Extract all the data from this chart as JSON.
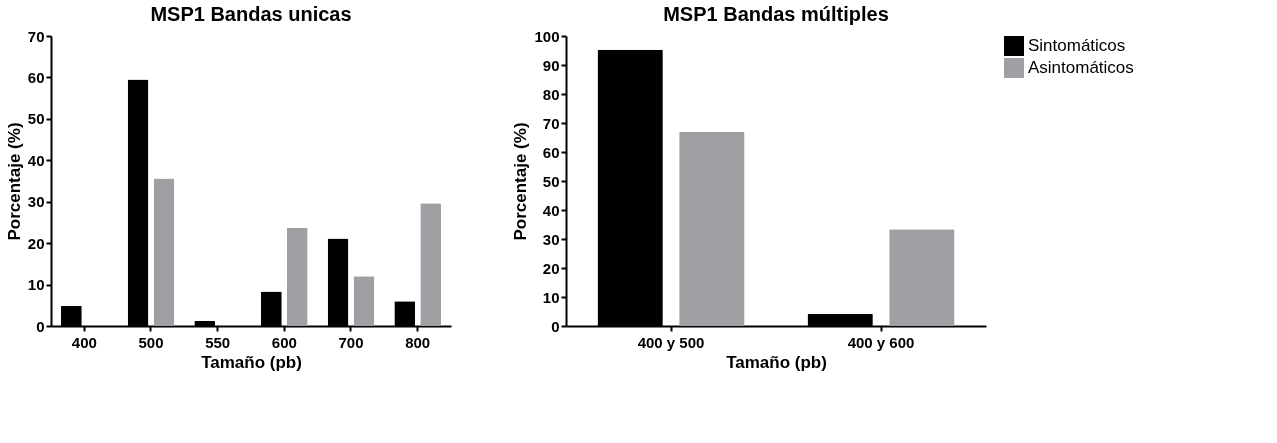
{
  "chart_data": [
    {
      "type": "bar",
      "title": "MSP1 Bandas unicas",
      "xlabel": "Tamaño (pb)",
      "ylabel": "Porcentaje (%)",
      "categories": [
        "400",
        "500",
        "550",
        "600",
        "700",
        "800"
      ],
      "series": [
        {
          "color": "#000000",
          "values": [
            4.8,
            59.5,
            1.2,
            8.3,
            21.1,
            6.0
          ]
        },
        {
          "color": "#a0a0a4",
          "values": [
            null,
            35.6,
            null,
            23.7,
            12.0,
            29.6
          ]
        }
      ],
      "ylim": [
        0,
        70
      ],
      "yticks": [
        0,
        10,
        20,
        30,
        40,
        50,
        60,
        70
      ],
      "grid": false,
      "legend": false
    },
    {
      "type": "bar",
      "title": "MSP1 Bandas múltiples",
      "xlabel": "Tamaño (pb)",
      "ylabel": "Porcentaje (%)",
      "categories": [
        "400 y 500",
        "400 y 600"
      ],
      "series": [
        {
          "name": "Sintomáticos",
          "color": "#000000",
          "values": [
            95.3,
            4.1
          ]
        },
        {
          "name": "Asintomáticos",
          "color": "#a0a0a4",
          "values": [
            67.0,
            33.4
          ]
        }
      ],
      "ylim": [
        0,
        100
      ],
      "yticks": [
        0,
        10,
        20,
        30,
        40,
        50,
        60,
        70,
        80,
        90,
        100
      ],
      "grid": false,
      "legend": "top right"
    }
  ]
}
